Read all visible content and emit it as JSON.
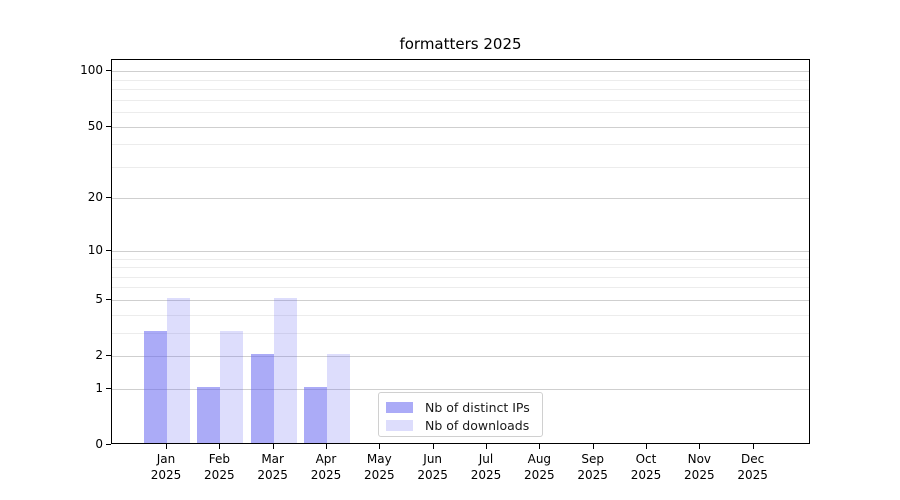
{
  "chart_data": {
    "type": "bar",
    "title": "formatters 2025",
    "categories": [
      "Jan",
      "Feb",
      "Mar",
      "Apr",
      "May",
      "Jun",
      "Jul",
      "Aug",
      "Sep",
      "Oct",
      "Nov",
      "Dec"
    ],
    "year_label": "2025",
    "series": [
      {
        "name": "Nb of distinct IPs",
        "color": "rgba(102,102,240,0.55)",
        "values": [
          3,
          1,
          2,
          1,
          0,
          0,
          0,
          0,
          0,
          0,
          0,
          0
        ]
      },
      {
        "name": "Nb of downloads",
        "color": "rgba(102,102,240,0.22)",
        "values": [
          5,
          3,
          5,
          2,
          0,
          0,
          0,
          0,
          0,
          0,
          0,
          0
        ]
      }
    ],
    "xlabel": "",
    "ylabel": "",
    "yscale": "log1p",
    "yticks": [
      0,
      1,
      2,
      5,
      10,
      20,
      50,
      100
    ],
    "yticks_minor": [
      3,
      4,
      6,
      7,
      8,
      9,
      30,
      40,
      60,
      70,
      80,
      90
    ],
    "ylim": [
      0,
      115
    ],
    "grid": true,
    "legend_position": "inside bottom-center-left",
    "style": {
      "background": "#ffffff",
      "spine_color": "#000000",
      "grid_major_color": "#cfcfcf",
      "grid_minor_color": "#ececec",
      "legend_border_color": "#d0d0d0",
      "text_color": "#000000"
    }
  }
}
